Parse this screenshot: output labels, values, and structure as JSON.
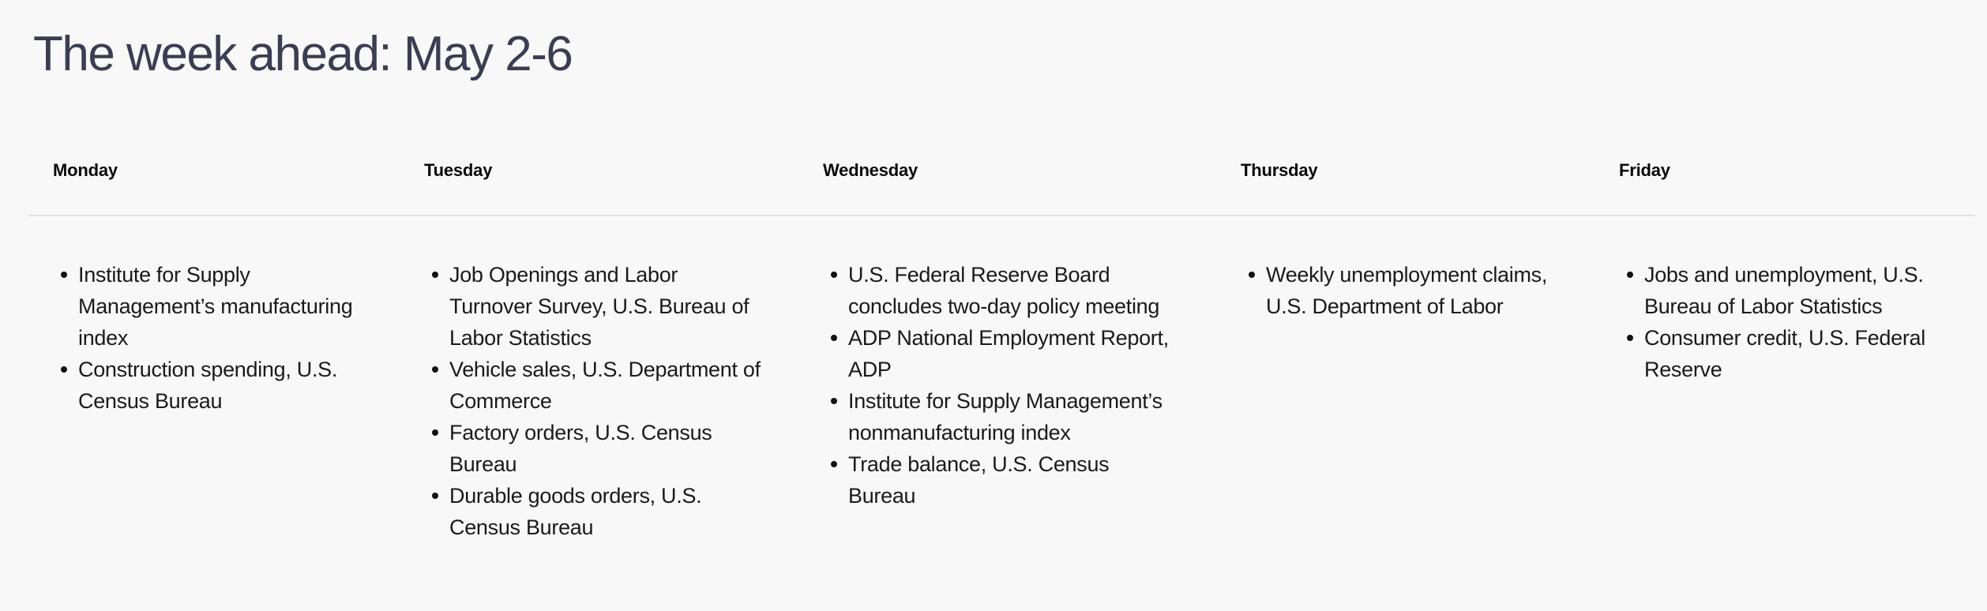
{
  "page": {
    "title": "The week ahead: May 2-6",
    "colors": {
      "background": "#f8f8f9",
      "title_text": "#3b3d52",
      "header_text": "#0a0a0a",
      "body_text": "#1a1a1a",
      "divider": "#e0e0e0",
      "bullet": "#111111"
    }
  },
  "week": {
    "days": [
      {
        "label": "Monday",
        "items": [
          "Institute for Supply Management’s manufacturing index",
          "Construction spending, U.S. Census Bureau"
        ]
      },
      {
        "label": "Tuesday",
        "items": [
          "Job Openings and Labor Turnover Survey, U.S. Bureau of Labor Statistics",
          "Vehicle sales, U.S. Department of Commerce",
          "Factory orders, U.S. Census Bureau",
          "Durable goods orders, U.S. Census Bureau"
        ]
      },
      {
        "label": "Wednesday",
        "items": [
          "U.S. Federal Reserve Board concludes two-day policy meeting",
          "ADP National Employment Report, ADP",
          "Institute for Supply Management’s nonmanufacturing index",
          "Trade balance, U.S. Census Bureau"
        ]
      },
      {
        "label": "Thursday",
        "items": [
          "Weekly unemployment claims, U.S. Department of Labor"
        ]
      },
      {
        "label": "Friday",
        "items": [
          "Jobs and unemployment, U.S. Bureau of Labor Statistics",
          "Consumer credit, U.S. Federal Reserve"
        ]
      }
    ]
  }
}
